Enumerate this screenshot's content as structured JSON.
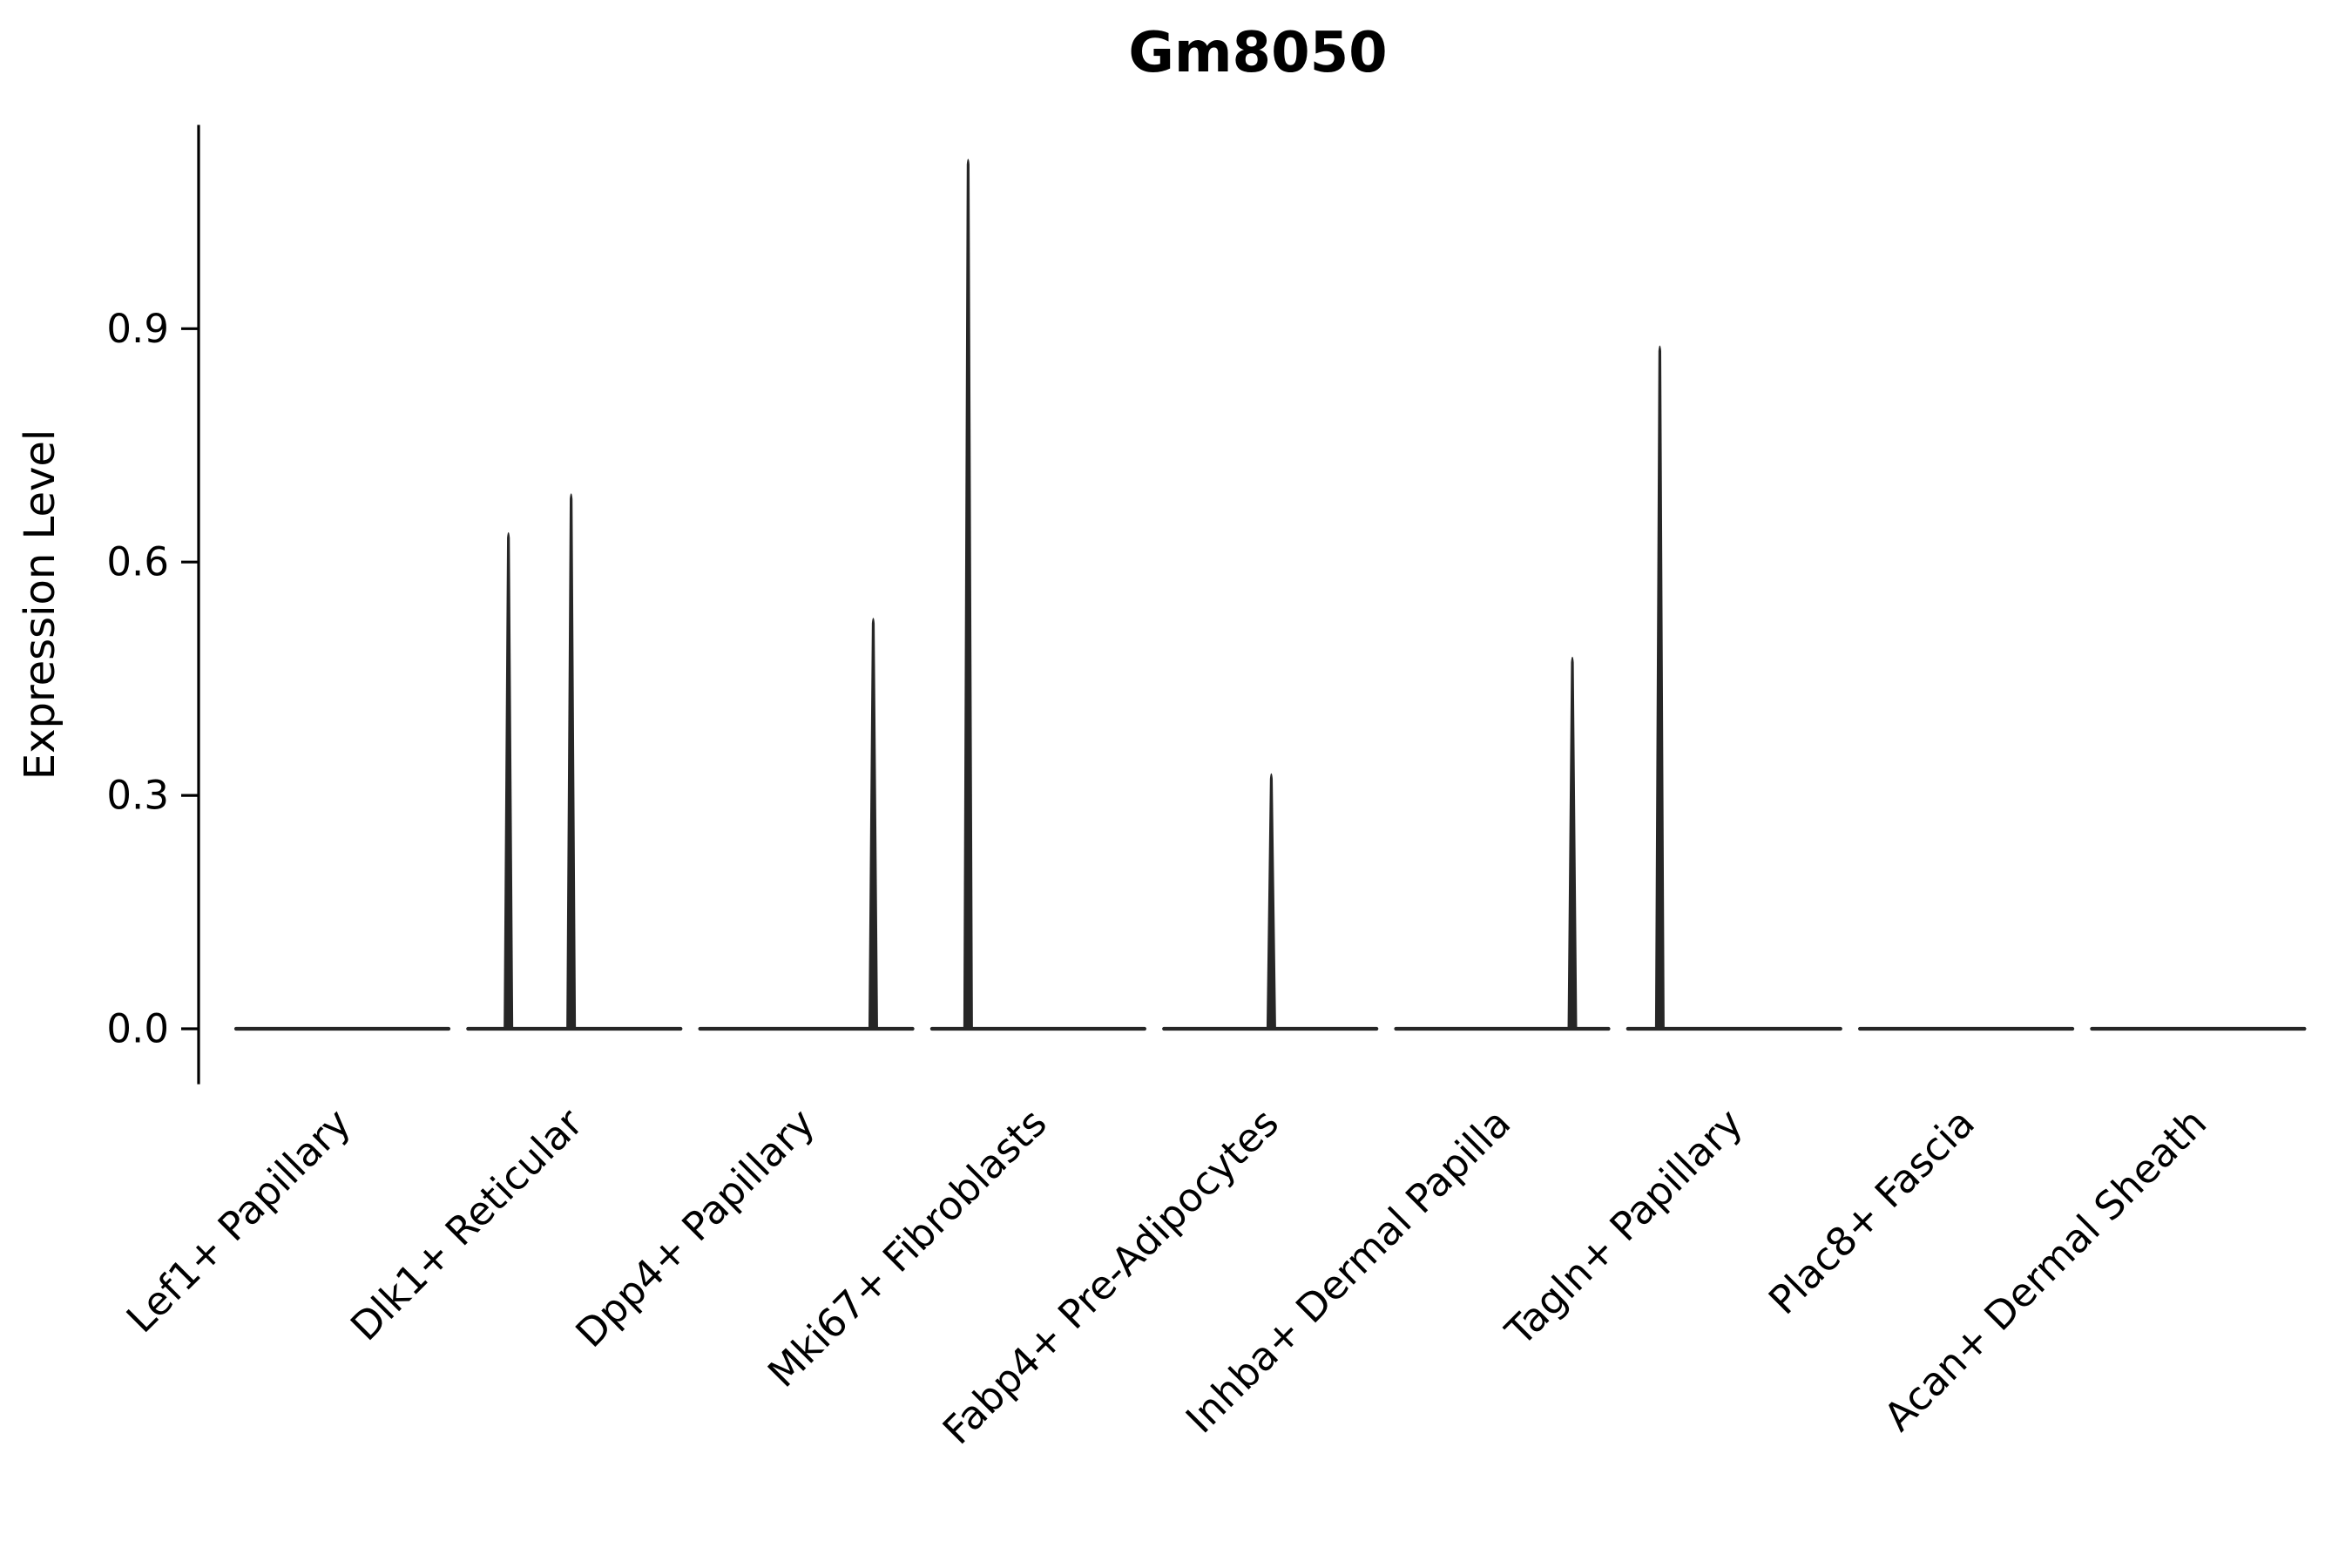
{
  "chart_data": {
    "type": "violin",
    "title": "Gm8050",
    "ylabel": "Expression Level",
    "xlabel": "",
    "yticks": [
      0.0,
      0.3,
      0.6,
      0.9
    ],
    "ylim": [
      -0.04,
      1.16
    ],
    "grid": false,
    "legend": "none",
    "ink_color": "#262626",
    "categories": [
      "Lef1+ Papillary",
      "Dlk1+ Reticular",
      "Dpp4+ Papillary",
      "Mki67+ Fibroblasts",
      "Fabp4+ Pre-Adipocytes",
      "Inhba+ Dermal Papilla",
      "Tagln+ Papillary",
      "Plac8+ Fascia",
      "Acan+ Dermal Sheath"
    ],
    "violins": [
      {
        "label": "Lef1+ Papillary",
        "baseline": 0.0,
        "spikes": []
      },
      {
        "label": "Dlk1+ Reticular",
        "baseline": 0.0,
        "spikes": [
          {
            "x_offset": -0.62,
            "peak": 0.64
          },
          {
            "x_offset": -0.03,
            "peak": 0.69
          }
        ]
      },
      {
        "label": "Dpp4+ Papillary",
        "baseline": 0.0,
        "spikes": [
          {
            "x_offset": 0.63,
            "peak": 0.53
          }
        ]
      },
      {
        "label": "Mki67+ Fibroblasts",
        "baseline": 0.0,
        "spikes": [
          {
            "x_offset": -0.66,
            "peak": 1.12
          }
        ]
      },
      {
        "label": "Fabp4+ Pre-Adipocytes",
        "baseline": 0.0,
        "spikes": [
          {
            "x_offset": 0.01,
            "peak": 0.33
          }
        ]
      },
      {
        "label": "Inhba+ Dermal Papilla",
        "baseline": 0.0,
        "spikes": [
          {
            "x_offset": 0.66,
            "peak": 0.48
          }
        ]
      },
      {
        "label": "Tagln+ Papillary",
        "baseline": 0.0,
        "spikes": [
          {
            "x_offset": -0.7,
            "peak": 0.88
          }
        ]
      },
      {
        "label": "Plac8+ Fascia",
        "baseline": 0.0,
        "spikes": []
      },
      {
        "label": "Acan+ Dermal Sheath",
        "baseline": 0.0,
        "spikes": []
      }
    ]
  }
}
